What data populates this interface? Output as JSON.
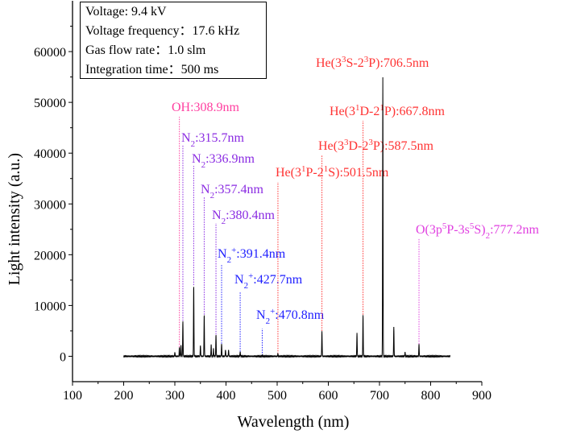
{
  "chart_data": {
    "type": "line",
    "title": "",
    "xlabel": "Wavelength (nm)",
    "ylabel": "Light intensity (a.u.)",
    "xlim": [
      100,
      900
    ],
    "ylim": [
      -5000,
      70000
    ],
    "xticks": [
      100,
      200,
      300,
      400,
      500,
      600,
      700,
      800,
      900
    ],
    "yticks": [
      0,
      10000,
      20000,
      30000,
      40000,
      50000,
      60000
    ],
    "grid": false,
    "spectrum_range": [
      200,
      838
    ],
    "line_color": "#000000",
    "peaks": [
      {
        "x": 300,
        "y": 800
      },
      {
        "x": 308.9,
        "y": 1800
      },
      {
        "x": 312,
        "y": 2200
      },
      {
        "x": 315.7,
        "y": 7000
      },
      {
        "x": 336.9,
        "y": 14000
      },
      {
        "x": 350,
        "y": 2200
      },
      {
        "x": 357.4,
        "y": 8200
      },
      {
        "x": 371,
        "y": 2300
      },
      {
        "x": 375.5,
        "y": 1500
      },
      {
        "x": 380.4,
        "y": 4300
      },
      {
        "x": 391.4,
        "y": 2500
      },
      {
        "x": 399,
        "y": 1300
      },
      {
        "x": 405,
        "y": 1300
      },
      {
        "x": 427.7,
        "y": 900
      },
      {
        "x": 470.8,
        "y": 150
      },
      {
        "x": 501.5,
        "y": 500
      },
      {
        "x": 587.5,
        "y": 5000
      },
      {
        "x": 656,
        "y": 4600
      },
      {
        "x": 667.8,
        "y": 8200
      },
      {
        "x": 706.5,
        "y": 55000
      },
      {
        "x": 728,
        "y": 5800
      },
      {
        "x": 750,
        "y": 800
      },
      {
        "x": 777.2,
        "y": 2400
      }
    ],
    "annotations": [
      {
        "text": "OH:308.9nm",
        "x": 308.9,
        "species": "OH",
        "color": "#ff3fa0"
      },
      {
        "text": "N_2:315.7nm",
        "x": 315.7,
        "species": "N2",
        "color": "#8a2be2"
      },
      {
        "text": "N_2:336.9nm",
        "x": 336.9,
        "species": "N2",
        "color": "#8a2be2"
      },
      {
        "text": "N_2:357.4nm",
        "x": 357.4,
        "species": "N2",
        "color": "#8a2be2"
      },
      {
        "text": "N_2:380.4nm",
        "x": 380.4,
        "species": "N2",
        "color": "#8a2be2"
      },
      {
        "text": "N_2^+:391.4nm",
        "x": 391.4,
        "species": "N2+",
        "color": "#2020ff"
      },
      {
        "text": "N_2^+:427.7nm",
        "x": 427.7,
        "species": "N2+",
        "color": "#2020ff"
      },
      {
        "text": "N_2^+:470.8nm",
        "x": 470.8,
        "species": "N2+",
        "color": "#2020ff"
      },
      {
        "text": "He(3^1P-2^1S):501.5nm",
        "x": 501.5,
        "species": "He",
        "color": "#ff3333"
      },
      {
        "text": "He(3^3D-2^3P):587.5nm",
        "x": 587.5,
        "species": "He",
        "color": "#ff3333"
      },
      {
        "text": "He(3^1D-2^1P):667.8nm",
        "x": 667.8,
        "species": "He",
        "color": "#ff3333"
      },
      {
        "text": "He(3^3S-2^3P):706.5nm",
        "x": 706.5,
        "species": "He",
        "color": "#ff3333"
      },
      {
        "text": "O(3p^5P-3s^5S)_2:777.2nm",
        "x": 777.2,
        "species": "O",
        "color": "#e040e0"
      }
    ]
  },
  "legend": {
    "lines": [
      "Voltage:  9.4 kV",
      "Voltage frequency：17.6 kHz",
      "Gas flow rate：1.0 slm",
      "Integration time：500 ms"
    ]
  }
}
